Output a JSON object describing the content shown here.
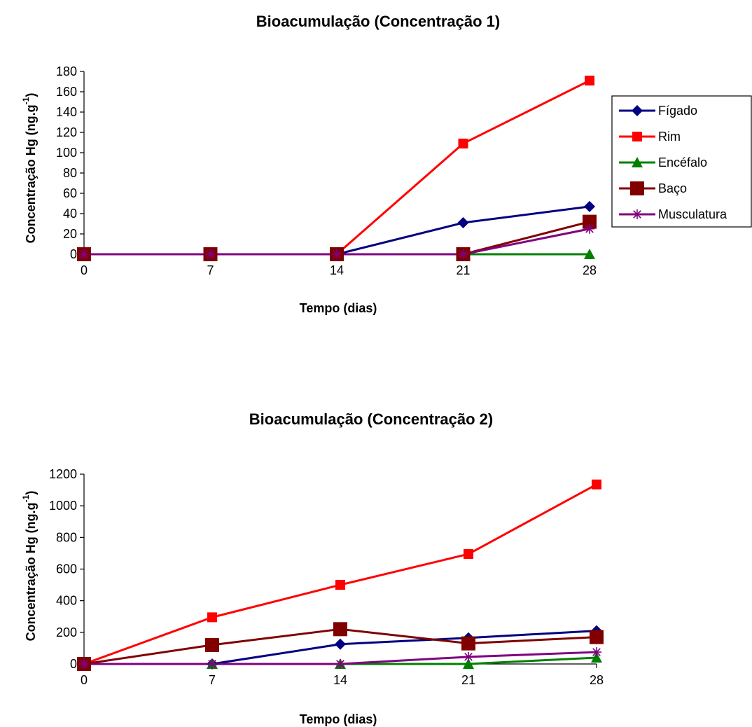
{
  "chart_data": [
    {
      "type": "line",
      "title": "Bioacumulação (Concentração 1)",
      "xlabel": "Tempo (dias)",
      "ylabel": "Concentração Hg (ng.g",
      "ylabel_sup": "-1",
      "ylabel_close": ")",
      "x": [
        0,
        7,
        14,
        21,
        28
      ],
      "xlim": [
        0,
        28
      ],
      "ylim": [
        0,
        180
      ],
      "yticks": [
        0,
        20,
        40,
        60,
        80,
        100,
        120,
        140,
        160,
        180
      ],
      "grid": false,
      "legend": "right",
      "series": [
        {
          "name": "Fígado",
          "values": [
            0,
            0,
            0,
            31,
            47
          ],
          "color": "#000080",
          "marker": "diamond"
        },
        {
          "name": "Rim",
          "values": [
            0,
            0,
            0,
            109,
            171
          ],
          "color": "#ff0000",
          "marker": "square"
        },
        {
          "name": "Encéfalo",
          "values": [
            0,
            0,
            0,
            0,
            0
          ],
          "color": "#008000",
          "marker": "triangle"
        },
        {
          "name": "Baço",
          "values": [
            0,
            0,
            0,
            0,
            32
          ],
          "color": "#800000",
          "marker": "big-square"
        },
        {
          "name": "Musculatura",
          "values": [
            0,
            0,
            0,
            0,
            25
          ],
          "color": "#800080",
          "marker": "asterisk"
        }
      ]
    },
    {
      "type": "line",
      "title": "Bioacumulação (Concentração 2)",
      "xlabel": "Tempo (dias)",
      "ylabel": "Concentração Hg (ng.g",
      "ylabel_sup": "-1",
      "ylabel_close": ")",
      "x": [
        0,
        7,
        14,
        21,
        28
      ],
      "xlim": [
        0,
        28
      ],
      "ylim": [
        0,
        1200
      ],
      "yticks": [
        0,
        200,
        400,
        600,
        800,
        1000,
        1200
      ],
      "grid": false,
      "legend": "none",
      "series": [
        {
          "name": "Fígado",
          "values": [
            0,
            0,
            125,
            165,
            210
          ],
          "color": "#000080",
          "marker": "diamond"
        },
        {
          "name": "Rim",
          "values": [
            0,
            295,
            500,
            695,
            1135
          ],
          "color": "#ff0000",
          "marker": "square"
        },
        {
          "name": "Encéfalo",
          "values": [
            0,
            0,
            0,
            0,
            40
          ],
          "color": "#008000",
          "marker": "triangle"
        },
        {
          "name": "Baço",
          "values": [
            0,
            120,
            220,
            130,
            170
          ],
          "color": "#800000",
          "marker": "big-square"
        },
        {
          "name": "Musculatura",
          "values": [
            0,
            0,
            0,
            45,
            75
          ],
          "color": "#800080",
          "marker": "asterisk"
        }
      ]
    }
  ]
}
